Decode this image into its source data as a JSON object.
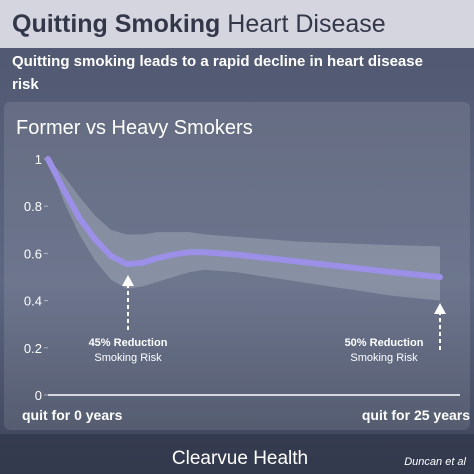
{
  "chart_data": {
    "type": "line",
    "title_bold": "Quitting Smoking",
    "title_rest": "Heart Disease",
    "subtitle": "Quitting smoking leads to a rapid decline in heart disease risk",
    "panel_title": "Former vs Heavy Smokers",
    "x": [
      0,
      1,
      2,
      3,
      4,
      5,
      6,
      7,
      8,
      9,
      10,
      12,
      14,
      16,
      18,
      20,
      22,
      25
    ],
    "values": [
      1.0,
      0.87,
      0.75,
      0.66,
      0.59,
      0.555,
      0.56,
      0.58,
      0.595,
      0.605,
      0.605,
      0.595,
      0.58,
      0.565,
      0.55,
      0.535,
      0.52,
      0.5
    ],
    "upper": [
      1.0,
      0.93,
      0.84,
      0.76,
      0.7,
      0.68,
      0.68,
      0.69,
      0.69,
      0.69,
      0.68,
      0.67,
      0.66,
      0.65,
      0.645,
      0.64,
      0.635,
      0.63
    ],
    "lower": [
      1.0,
      0.82,
      0.68,
      0.57,
      0.49,
      0.45,
      0.46,
      0.48,
      0.5,
      0.52,
      0.53,
      0.52,
      0.5,
      0.48,
      0.46,
      0.44,
      0.42,
      0.4
    ],
    "color": "#9b8fe8",
    "band_color": "#c8ccd8",
    "xlim": [
      0,
      25
    ],
    "ylim": [
      0,
      1
    ],
    "yticks": [
      0,
      0.2,
      0.4,
      0.6,
      0.8,
      1
    ],
    "xticks": [
      {
        "value": 0,
        "label": "quit for 0 years"
      },
      {
        "value": 25,
        "label": "quit for 25 years"
      }
    ],
    "annotations": [
      {
        "text": "45% Reduction",
        "note": "Smoking Risk"
      },
      {
        "text": "50% Reduction",
        "note": "Smoking Risk"
      }
    ],
    "brand": "Clearvue Health",
    "source": "Duncan et al"
  }
}
